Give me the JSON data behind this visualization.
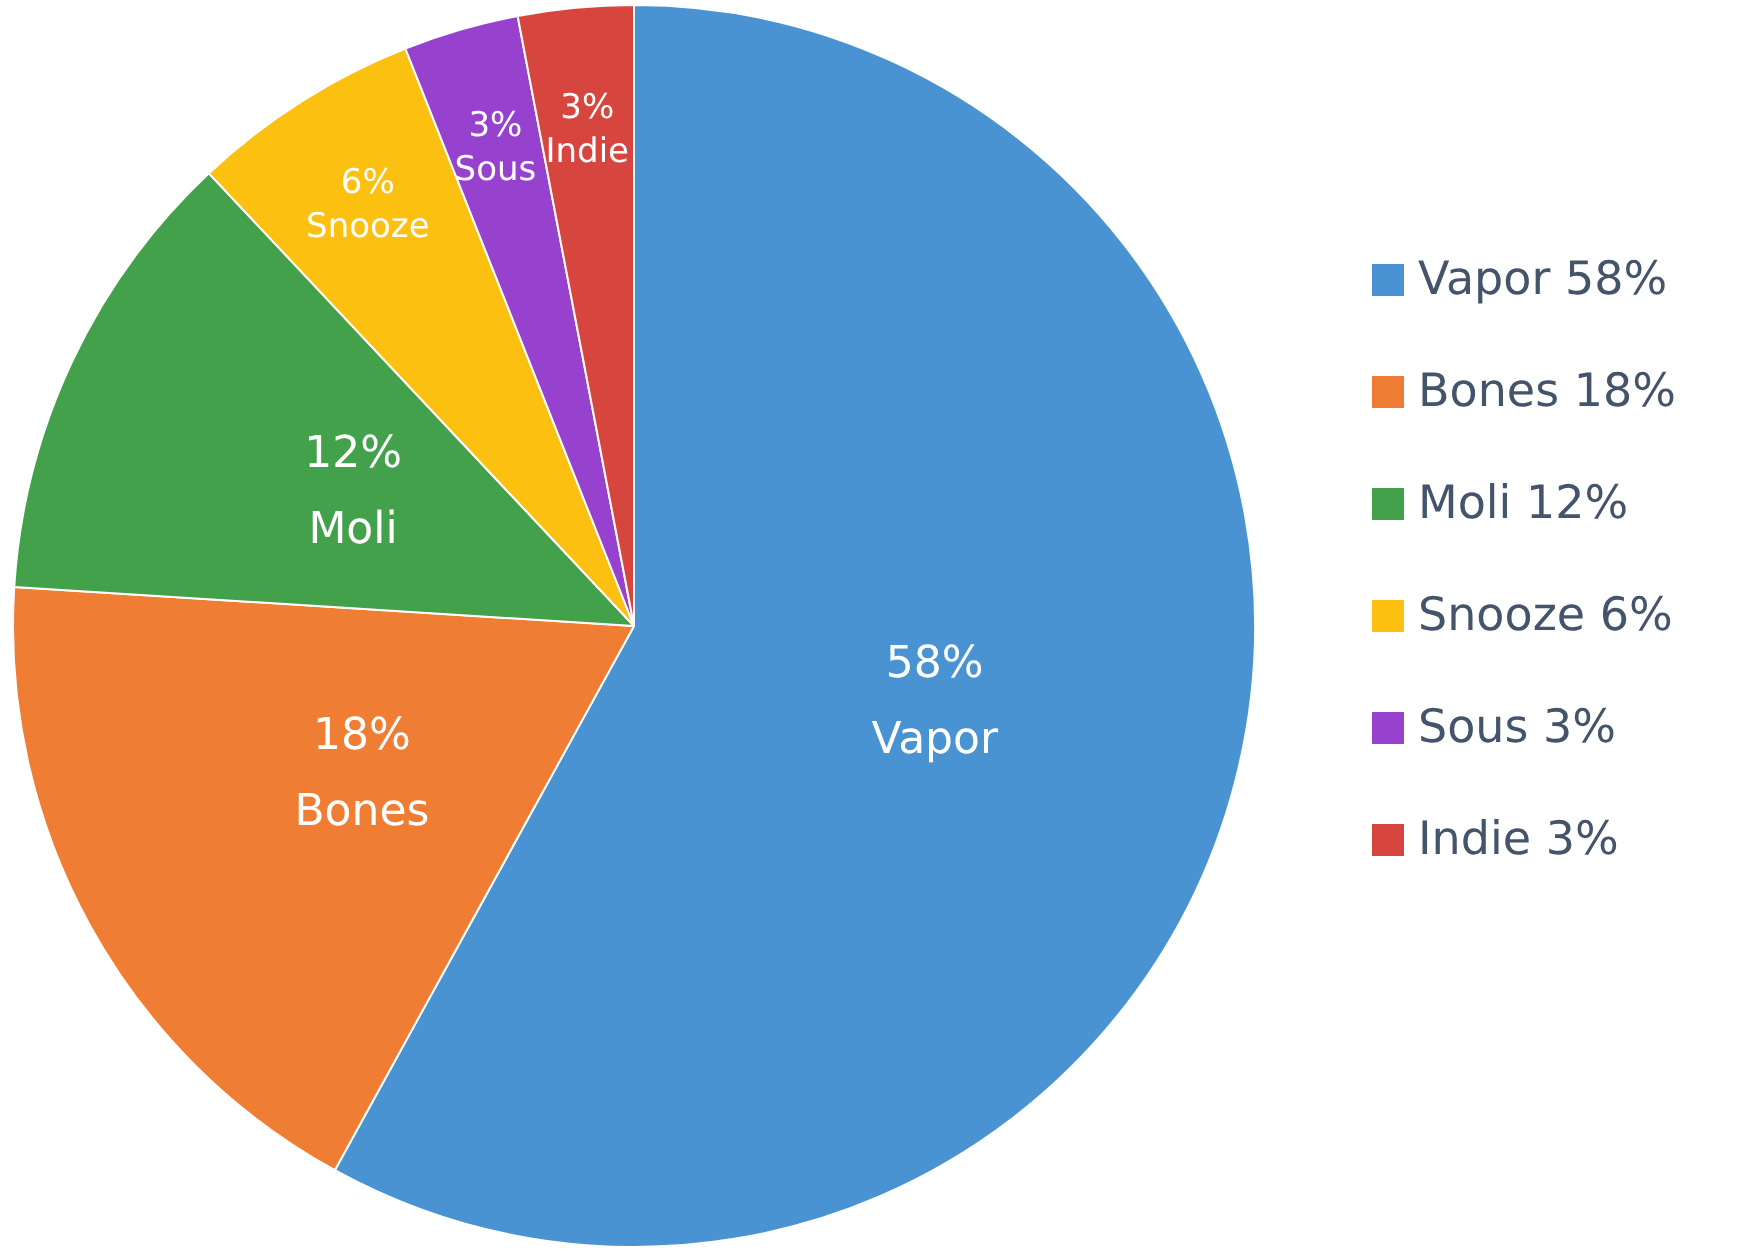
{
  "chart_data": {
    "type": "pie",
    "categories": [
      "Vapor",
      "Bones",
      "Moli",
      "Snooze",
      "Sous",
      "Indie"
    ],
    "values": [
      58,
      18,
      12,
      6,
      3,
      3
    ],
    "value_labels": [
      "58%",
      "18%",
      "12%",
      "6%",
      "3%",
      "3%"
    ],
    "colors": [
      "#4a93d3",
      "#ef7d33",
      "#43a04b",
      "#fcc010",
      "#9642cf",
      "#d6453e"
    ],
    "legend": "right"
  }
}
